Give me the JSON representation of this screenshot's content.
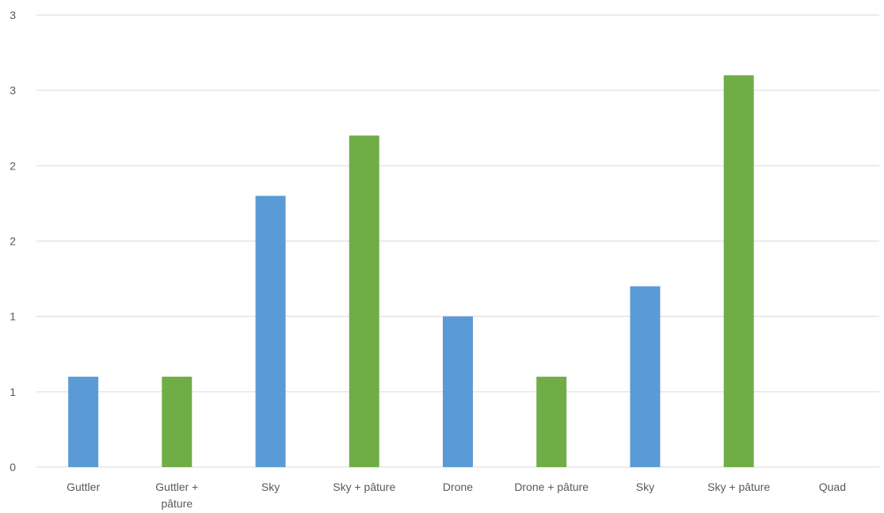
{
  "chart_data": {
    "type": "bar",
    "categories": [
      [
        "Guttler"
      ],
      [
        "Guttler +",
        "pâture"
      ],
      [
        "Sky"
      ],
      [
        "Sky + pâture"
      ],
      [
        "Drone"
      ],
      [
        "Drone + pâture"
      ],
      [
        "Sky"
      ],
      [
        "Sky + pâture"
      ],
      [
        "Quad"
      ]
    ],
    "values": [
      0.6,
      0.6,
      1.8,
      2.2,
      1.0,
      0.6,
      1.2,
      2.6,
      0
    ],
    "bar_colors": [
      "#5b9bd5",
      "#70ad47",
      "#5b9bd5",
      "#70ad47",
      "#5b9bd5",
      "#70ad47",
      "#5b9bd5",
      "#70ad47",
      "#5b9bd5"
    ],
    "ylim": [
      0,
      3.0
    ],
    "yticks": [
      0,
      0.5,
      1.0,
      1.5,
      2.0,
      2.5,
      3.0
    ],
    "ytick_labels": [
      "0",
      "1",
      "1",
      "2",
      "2",
      "3",
      "3"
    ],
    "grid": true,
    "title": "",
    "xlabel": "",
    "ylabel": "",
    "colors": {
      "gridline": "#d9d9d9",
      "text": "#595959"
    }
  }
}
